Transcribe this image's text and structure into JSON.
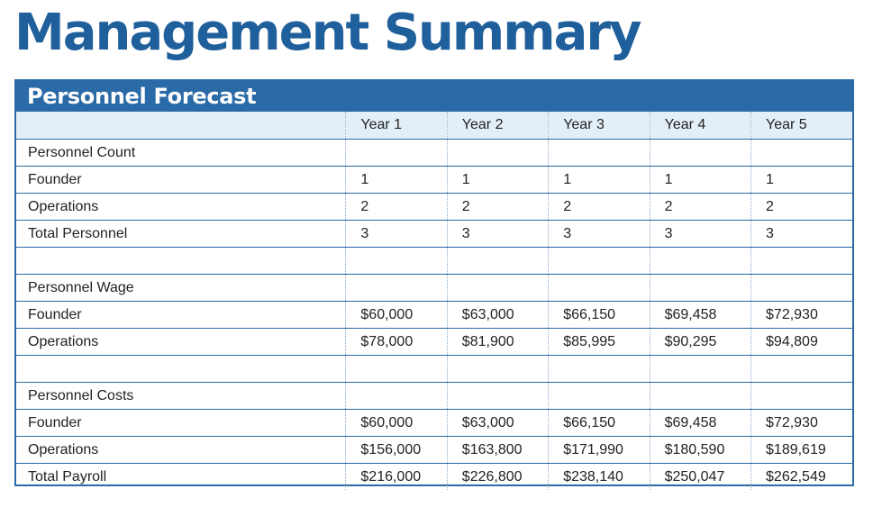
{
  "page_title": "Management Summary",
  "table": {
    "caption": "Personnel Forecast",
    "columns": [
      "",
      "Year 1",
      "Year 2",
      "Year 3",
      "Year 4",
      "Year 5"
    ],
    "rows": [
      [
        "Personnel Count",
        "",
        "",
        "",
        "",
        ""
      ],
      [
        "Founder",
        "1",
        "1",
        "1",
        "1",
        "1"
      ],
      [
        "Operations",
        "2",
        "2",
        "2",
        "2",
        "2"
      ],
      [
        "Total Personnel",
        "3",
        "3",
        "3",
        "3",
        "3"
      ],
      [
        "",
        "",
        "",
        "",
        "",
        ""
      ],
      [
        "Personnel Wage",
        "",
        "",
        "",
        "",
        ""
      ],
      [
        "Founder",
        "$60,000",
        "$63,000",
        "$66,150",
        "$69,458",
        "$72,930"
      ],
      [
        "Operations",
        "$78,000",
        "$81,900",
        "$85,995",
        "$90,295",
        "$94,809"
      ],
      [
        "",
        "",
        "",
        "",
        "",
        ""
      ],
      [
        "Personnel Costs",
        "",
        "",
        "",
        "",
        ""
      ],
      [
        "Founder",
        "$60,000",
        "$63,000",
        "$66,150",
        "$69,458",
        "$72,930"
      ],
      [
        "Operations",
        "$156,000",
        "$163,800",
        "$171,990",
        "$180,590",
        "$189,619"
      ],
      [
        "Total Payroll",
        "$216,000",
        "$226,800",
        "$238,140",
        "$250,047",
        "$262,549"
      ]
    ]
  },
  "colors": {
    "title": "#1f5f9b",
    "header_bar": "#2a6aa6",
    "column_header_bg": "#e3eff8"
  }
}
